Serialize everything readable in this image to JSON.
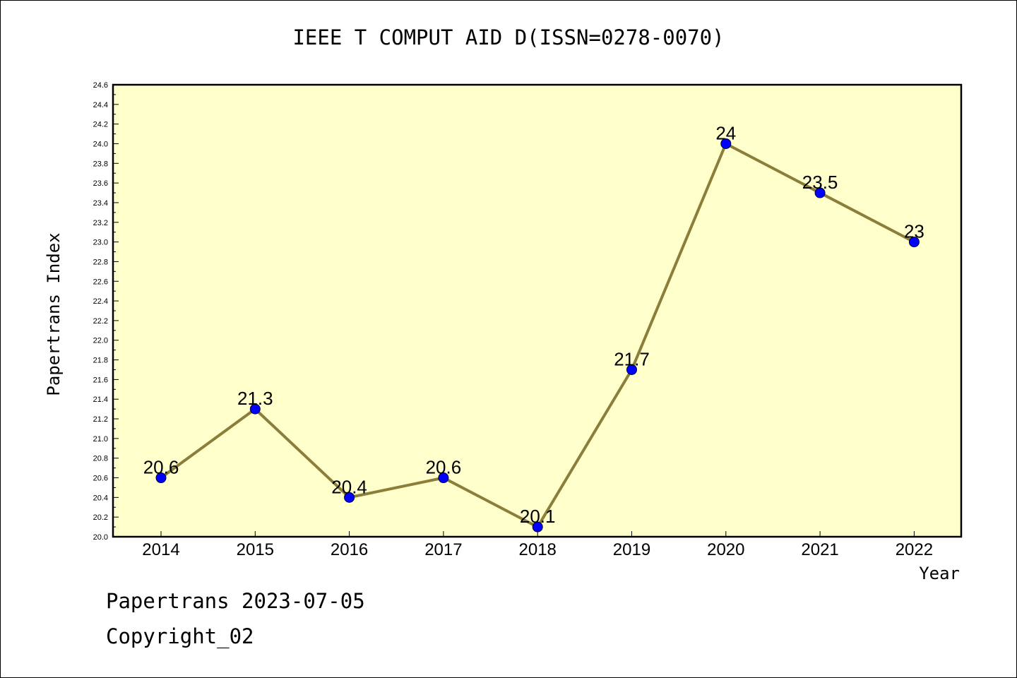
{
  "title": "IEEE T COMPUT AID D(ISSN=0278-0070)",
  "footer": {
    "line1": "Papertrans 2023-07-05",
    "line2": "Copyright_02"
  },
  "colors": {
    "plot_background": "#ffffcc",
    "line": "#8b7d3a",
    "marker": "#0000ff",
    "axis": "#000000"
  },
  "chart_data": {
    "type": "line",
    "xlabel": "Year",
    "ylabel": "Papertrans Index",
    "ylim": [
      20.0,
      24.6
    ],
    "y_ticks": [
      "20.0",
      "20.2",
      "20.4",
      "20.6",
      "20.8",
      "21.0",
      "21.2",
      "21.4",
      "21.6",
      "21.8",
      "22.0",
      "22.2",
      "22.4",
      "22.6",
      "22.8",
      "23.0",
      "23.2",
      "23.4",
      "23.6",
      "23.8",
      "24.0",
      "24.2",
      "24.4",
      "24.6"
    ],
    "categories": [
      "2014",
      "2015",
      "2016",
      "2017",
      "2018",
      "2019",
      "2020",
      "2021",
      "2022"
    ],
    "values": [
      20.6,
      21.3,
      20.4,
      20.6,
      20.1,
      21.7,
      24,
      23.5,
      23
    ],
    "data_labels": [
      "20.6",
      "21.3",
      "20.4",
      "20.6",
      "20.1",
      "21.7",
      "24",
      "23.5",
      "23"
    ],
    "grid": false,
    "legend": "none"
  }
}
